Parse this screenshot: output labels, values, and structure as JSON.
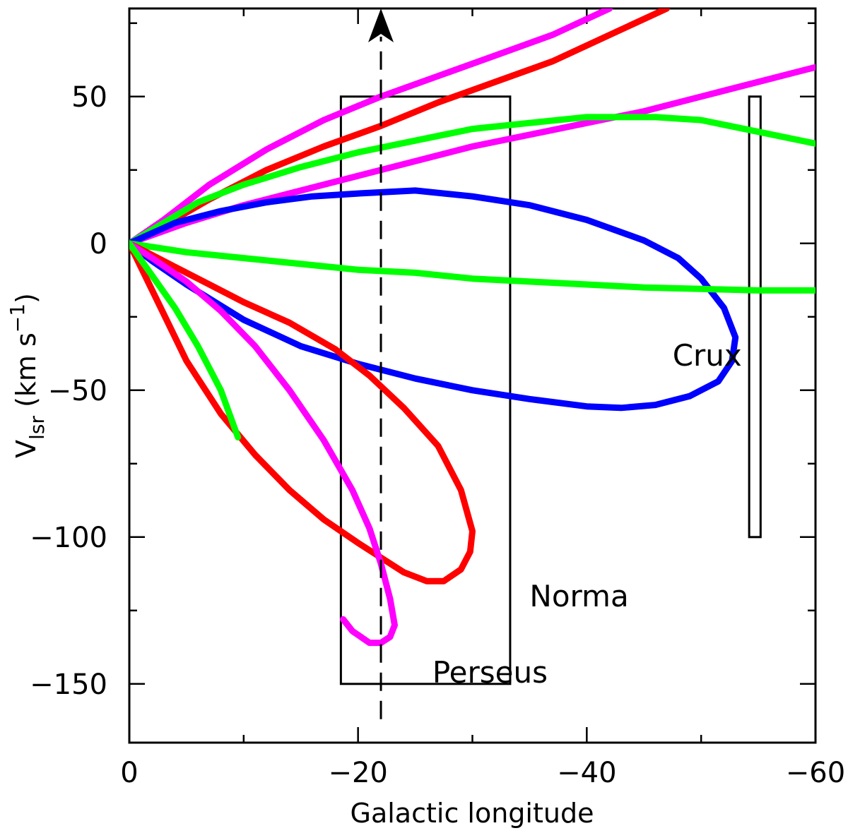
{
  "chart_data": {
    "type": "line",
    "title": "",
    "xlabel": "Galactic longitude",
    "ylabel": {
      "main": "V",
      "sub": "lsr",
      "units_pre": " (km s",
      "units_sup": "−1",
      "units_post": ")"
    },
    "xlim": [
      0,
      -60
    ],
    "ylim": [
      -170,
      80
    ],
    "grid": false,
    "legend": "none",
    "x_ticks": [
      {
        "value": 0,
        "label": "0"
      },
      {
        "value": -20,
        "label": "−20"
      },
      {
        "value": -40,
        "label": "−40"
      },
      {
        "value": -60,
        "label": "−60"
      }
    ],
    "y_ticks": [
      {
        "value": -150,
        "label": "−150"
      },
      {
        "value": -100,
        "label": "−100"
      },
      {
        "value": -50,
        "label": "−50"
      },
      {
        "value": 0,
        "label": "0"
      },
      {
        "value": 50,
        "label": "50"
      }
    ],
    "x_minor_step": 10,
    "y_minor_step": 25,
    "series": [
      {
        "color": "#ff00ff",
        "points": [
          [
            0,
            0
          ],
          [
            -3,
            8
          ],
          [
            -7,
            20
          ],
          [
            -12,
            32
          ],
          [
            -17,
            42
          ],
          [
            -22,
            50
          ],
          [
            -27,
            57
          ],
          [
            -32,
            64
          ],
          [
            -37,
            71
          ],
          [
            -42,
            80
          ]
        ]
      },
      {
        "color": "#ff0000",
        "points": [
          [
            0,
            0
          ],
          [
            -3,
            6
          ],
          [
            -7,
            15
          ],
          [
            -12,
            25
          ],
          [
            -17,
            33
          ],
          [
            -22,
            40
          ],
          [
            -27,
            48
          ],
          [
            -32,
            55
          ],
          [
            -37,
            62
          ],
          [
            -42,
            71
          ],
          [
            -47,
            80
          ]
        ]
      },
      {
        "color": "#ff00ff",
        "points": [
          [
            0,
            0
          ],
          [
            -5,
            7
          ],
          [
            -10,
            13
          ],
          [
            -15,
            18
          ],
          [
            -20,
            23
          ],
          [
            -25,
            28
          ],
          [
            -30,
            33
          ],
          [
            -35,
            37
          ],
          [
            -40,
            41
          ],
          [
            -45,
            45
          ],
          [
            -50,
            50
          ],
          [
            -55,
            55
          ],
          [
            -60,
            60
          ]
        ]
      },
      {
        "color": "#00ff00",
        "points": [
          [
            0,
            0
          ],
          [
            -3,
            7
          ],
          [
            -6,
            14
          ],
          [
            -10,
            20
          ],
          [
            -15,
            26
          ],
          [
            -20,
            31
          ],
          [
            -25,
            35
          ],
          [
            -30,
            39
          ],
          [
            -35,
            41
          ],
          [
            -40,
            43
          ],
          [
            -43,
            43
          ],
          [
            -46,
            43
          ],
          [
            -50,
            42
          ],
          [
            -55,
            38
          ],
          [
            -60,
            34
          ]
        ]
      },
      {
        "color": "#0000ff",
        "points": [
          [
            0,
            0
          ],
          [
            -4,
            7
          ],
          [
            -8,
            11
          ],
          [
            -12,
            14
          ],
          [
            -16,
            16
          ],
          [
            -20,
            17
          ],
          [
            -25,
            18
          ],
          [
            -30,
            16
          ],
          [
            -35,
            13
          ],
          [
            -40,
            8
          ],
          [
            -45,
            1
          ],
          [
            -48,
            -5
          ],
          [
            -50,
            -12
          ],
          [
            -52,
            -22
          ],
          [
            -53,
            -32
          ],
          [
            -52.7,
            -40
          ],
          [
            -51.5,
            -47
          ],
          [
            -49,
            -52
          ],
          [
            -46,
            -55
          ],
          [
            -43,
            -56
          ],
          [
            -40,
            -55.5
          ],
          [
            -35,
            -53
          ],
          [
            -30,
            -50
          ],
          [
            -25,
            -46
          ],
          [
            -20,
            -41
          ],
          [
            -15,
            -35
          ],
          [
            -10,
            -26
          ],
          [
            -5,
            -14
          ],
          [
            -2,
            -6
          ],
          [
            0,
            0
          ]
        ]
      },
      {
        "color": "#00ff00",
        "points": [
          [
            0,
            0
          ],
          [
            -5,
            -3
          ],
          [
            -10,
            -5
          ],
          [
            -15,
            -7
          ],
          [
            -20,
            -9
          ],
          [
            -25,
            -10
          ],
          [
            -30,
            -12
          ],
          [
            -35,
            -13
          ],
          [
            -40,
            -14
          ],
          [
            -45,
            -15
          ],
          [
            -50,
            -15.5
          ],
          [
            -55,
            -16
          ],
          [
            -60,
            -16
          ]
        ]
      },
      {
        "color": "#ff0000",
        "points": [
          [
            0,
            0
          ],
          [
            -2,
            -4
          ],
          [
            -4,
            -8
          ],
          [
            -7,
            -14
          ],
          [
            -10,
            -20
          ],
          [
            -14,
            -27
          ],
          [
            -18,
            -36
          ],
          [
            -21,
            -45
          ],
          [
            -24,
            -56
          ],
          [
            -27,
            -69
          ],
          [
            -29,
            -84
          ],
          [
            -30,
            -98
          ],
          [
            -29.8,
            -105
          ],
          [
            -29,
            -111
          ],
          [
            -27.5,
            -115
          ],
          [
            -26,
            -115
          ],
          [
            -24,
            -112
          ],
          [
            -22,
            -107
          ],
          [
            -20,
            -102
          ],
          [
            -17,
            -94
          ],
          [
            -14,
            -84
          ],
          [
            -11,
            -72
          ],
          [
            -8,
            -58
          ],
          [
            -5,
            -40
          ],
          [
            -3,
            -24
          ],
          [
            -1,
            -8
          ],
          [
            0,
            0
          ]
        ]
      },
      {
        "color": "#ff00ff",
        "points": [
          [
            0,
            0
          ],
          [
            -2,
            -5
          ],
          [
            -5,
            -13
          ],
          [
            -8,
            -23
          ],
          [
            -11,
            -35
          ],
          [
            -14,
            -50
          ],
          [
            -17,
            -67
          ],
          [
            -19.5,
            -84
          ],
          [
            -21,
            -97
          ],
          [
            -22,
            -109
          ],
          [
            -22.8,
            -121
          ],
          [
            -23.2,
            -130
          ],
          [
            -22.8,
            -134
          ],
          [
            -22,
            -136
          ],
          [
            -21,
            -136
          ],
          [
            -19.5,
            -132
          ],
          [
            -18.7,
            -128
          ]
        ]
      },
      {
        "color": "#00ff00",
        "points": [
          [
            0,
            0
          ],
          [
            -2,
            -11
          ],
          [
            -4,
            -22
          ],
          [
            -6,
            -35
          ],
          [
            -8,
            -50
          ],
          [
            -9.5,
            -66
          ]
        ]
      }
    ],
    "rects": [
      {
        "x0": -18.5,
        "x1": -33.3,
        "y0": -150,
        "y1": 50
      },
      {
        "x0": -54.2,
        "x1": -55.2,
        "y0": -100,
        "y1": 50
      }
    ],
    "arrow": {
      "x": -22,
      "y_start": -162,
      "y_end": 80
    },
    "annotations": [
      {
        "text": "Crux",
        "x": -47.5,
        "y": -38
      },
      {
        "text": "Norma",
        "x": -35,
        "y": -120
      },
      {
        "text": "Perseus",
        "x": -26.5,
        "y": -146
      }
    ]
  }
}
